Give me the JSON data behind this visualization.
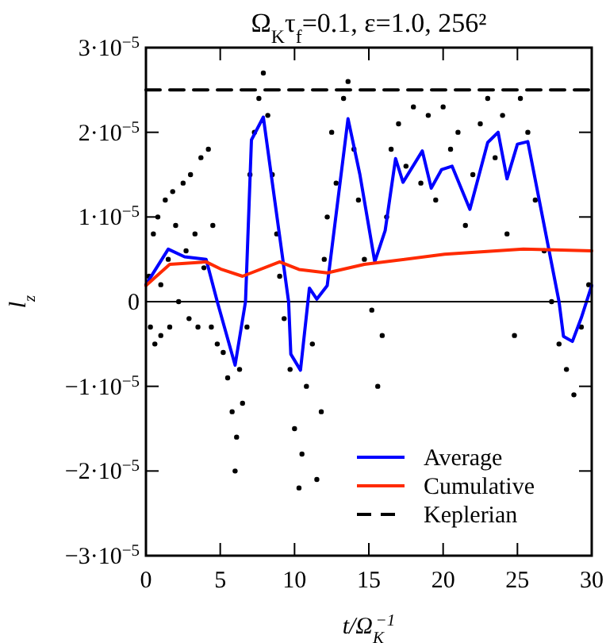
{
  "chart_data": {
    "type": "line",
    "title": "Ω$_{K}$τ$_{f}$=0.1, ε=1.0, 256²",
    "xlabel": "t/Ω$_{K}$$^{−1}$",
    "ylabel": "l$_{z}$",
    "xlim": [
      0,
      30
    ],
    "xticks": [
      0,
      5,
      10,
      15,
      20,
      25,
      30
    ],
    "ylim": [
      -3e-05,
      3e-05
    ],
    "yticks": [
      {
        "value": -3e-05,
        "label": "−3·10$^{−5}$"
      },
      {
        "value": -2e-05,
        "label": "−2·10$^{−5}$"
      },
      {
        "value": -1e-05,
        "label": "−1·10$^{−5}$"
      },
      {
        "value": 0,
        "label": "0"
      },
      {
        "value": 1e-05,
        "label": "1·10$^{−5}$"
      },
      {
        "value": 2e-05,
        "label": "2·10$^{−5}$"
      },
      {
        "value": 3e-05,
        "label": "3·10$^{−5}$"
      }
    ],
    "grid": false,
    "legend": "bottom right",
    "ref_lines": [
      {
        "axis": "y",
        "value": 0,
        "color": "#000000"
      }
    ],
    "series": [
      {
        "type": "scatter",
        "color": "#000000",
        "marker": "circle",
        "x": [
          0.2,
          0.3,
          0.5,
          0.6,
          0.8,
          1.0,
          1.0,
          1.3,
          1.5,
          1.6,
          1.8,
          2.0,
          2.2,
          2.5,
          2.7,
          2.9,
          3.0,
          3.3,
          3.5,
          3.7,
          3.9,
          4.2,
          4.4,
          4.5,
          4.8,
          5.2,
          5.5,
          5.8,
          6.0,
          6.1,
          6.3,
          6.5,
          6.8,
          7.0,
          7.3,
          7.6,
          7.9,
          8.2,
          8.5,
          8.8,
          9.0,
          9.3,
          9.7,
          10.0,
          10.3,
          10.5,
          10.8,
          11.2,
          11.5,
          11.8,
          12.0,
          12.2,
          12.5,
          12.8,
          13.3,
          13.6,
          14.0,
          14.3,
          14.7,
          15.2,
          15.6,
          15.9,
          16.2,
          16.5,
          17.0,
          17.5,
          18.0,
          18.5,
          19.0,
          19.5,
          20.0,
          20.5,
          21.0,
          21.5,
          22.0,
          22.5,
          23.0,
          23.5,
          24.0,
          24.3,
          24.8,
          25.2,
          25.7,
          26.2,
          26.8,
          27.3,
          27.8,
          28.3,
          28.8,
          29.3,
          29.8
        ],
        "values": [
          3e-06,
          -3e-06,
          8e-06,
          -5e-06,
          1e-05,
          2e-06,
          -4e-06,
          1.2e-05,
          5e-06,
          -3e-06,
          1.3e-05,
          9e-06,
          0,
          1.4e-05,
          6e-06,
          -2e-06,
          1.5e-05,
          8e-06,
          -3e-06,
          1.7e-05,
          4e-06,
          1.8e-05,
          -3e-06,
          9e-06,
          -5e-06,
          -6e-06,
          -9e-06,
          -1.3e-05,
          -2e-05,
          -1.6e-05,
          -8e-06,
          -1.2e-05,
          -3e-06,
          1.5e-05,
          2e-05,
          2.4e-05,
          2.7e-05,
          2.2e-05,
          1.5e-05,
          8e-06,
          3e-06,
          -2e-06,
          -8e-06,
          -1.5e-05,
          -2.2e-05,
          -1.8e-05,
          -1e-05,
          -5e-06,
          -2.1e-05,
          -1.3e-05,
          5e-06,
          1e-05,
          2e-05,
          1.4e-05,
          2.4e-05,
          2.6e-05,
          1.8e-05,
          1.2e-05,
          5e-06,
          -1e-06,
          -1e-05,
          -4e-06,
          1e-05,
          1.8e-05,
          2.1e-05,
          1.6e-05,
          2.3e-05,
          1.4e-05,
          2.2e-05,
          1.2e-05,
          2.3e-05,
          1.8e-05,
          2e-05,
          9e-06,
          1.5e-05,
          2.1e-05,
          2.4e-05,
          1.7e-05,
          2.2e-05,
          8e-06,
          -4e-06,
          2.4e-05,
          2e-05,
          1.2e-05,
          6e-06,
          0,
          -5e-06,
          -8e-06,
          -1.1e-05,
          -3e-06,
          2e-06
        ]
      },
      {
        "name": "Average",
        "color": "#0000ff",
        "line_style": "solid",
        "x": [
          0,
          1.5,
          2.6,
          4.05,
          4.8,
          6.0,
          6.7,
          7.1,
          7.9,
          9.6,
          9.75,
          10.4,
          11.0,
          11.5,
          12.2,
          13.6,
          14.4,
          15.4,
          16.1,
          16.8,
          17.3,
          18.6,
          19.2,
          19.9,
          20.6,
          21.8,
          23.0,
          23.7,
          24.3,
          25.0,
          25.7,
          27.8,
          28.1,
          28.7,
          29.3,
          30
        ],
        "values": [
          2e-06,
          6.2e-06,
          5.3e-06,
          5e-06,
          0,
          -7.5e-06,
          0,
          1.91e-05,
          2.18e-05,
          0,
          -6.2e-06,
          -8.1e-06,
          1.6e-06,
          3e-07,
          1.9e-06,
          2.16e-05,
          1.5e-05,
          4.7e-06,
          8.4e-06,
          1.69e-05,
          1.41e-05,
          1.78e-05,
          1.34e-05,
          1.56e-05,
          1.6e-05,
          1.09e-05,
          1.88e-05,
          2e-05,
          1.45e-05,
          1.86e-05,
          1.89e-05,
          0,
          -4.1e-06,
          -4.7e-06,
          -1.9e-06,
          1.9e-06
        ]
      },
      {
        "name": "Cumulative",
        "color": "#ff2a00",
        "line_style": "solid",
        "x": [
          0,
          1.6,
          4.05,
          5.1,
          6.5,
          9.0,
          10.3,
          12.2,
          14.7,
          20.1,
          25.4,
          30
        ],
        "values": [
          1.9e-06,
          4.4e-06,
          4.7e-06,
          3.8e-06,
          3e-06,
          4.7e-06,
          3.8e-06,
          3.4e-06,
          4.4e-06,
          5.6e-06,
          6.2e-06,
          6e-06
        ]
      },
      {
        "name": "Keplerian",
        "color": "#000000",
        "line_style": "dashed",
        "x": [
          0,
          30
        ],
        "values": [
          2.5e-05,
          2.5e-05
        ]
      }
    ]
  }
}
